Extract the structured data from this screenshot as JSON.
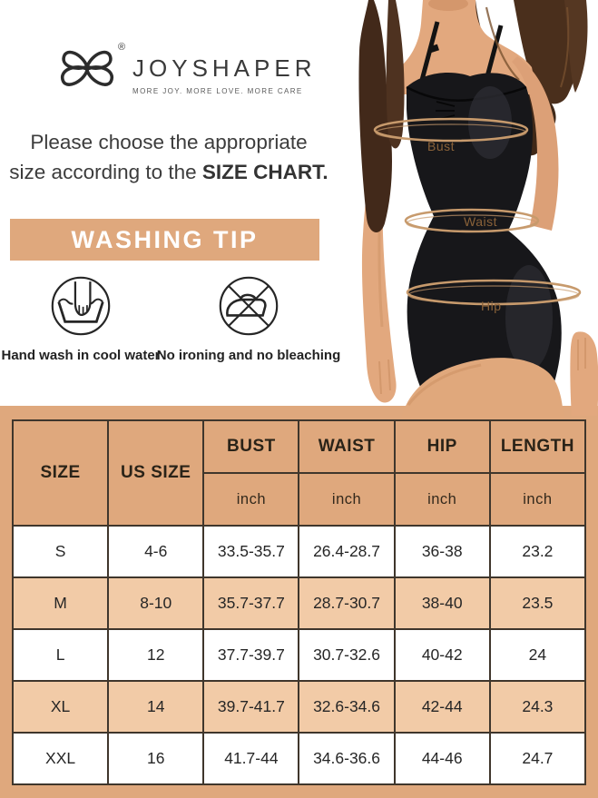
{
  "brand": {
    "name": "JOYSHAPER",
    "tagline": "MORE JOY. MORE LOVE. MORE CARE",
    "registered": "®",
    "logo_icon": "butterfly-bow-icon"
  },
  "intro": {
    "line1": "Please choose the appropriate",
    "line2_prefix": "size according to the ",
    "line2_bold": "SIZE CHART."
  },
  "washing_tip": {
    "title": "WASHING TIP",
    "items": [
      {
        "icon": "hand-wash-icon",
        "label": "Hand wash in cool water"
      },
      {
        "icon": "no-iron-icon",
        "label": "No ironing and no bleaching"
      }
    ]
  },
  "figure": {
    "labels": {
      "bust": "Bust",
      "waist": "Waist",
      "hip": "Hip"
    }
  },
  "size_chart": {
    "columns": [
      "SIZE",
      "US SIZE",
      "BUST",
      "WAIST",
      "HIP",
      "LENGTH"
    ],
    "unit": "inch",
    "rows": [
      [
        "S",
        "4-6",
        "33.5-35.7",
        "26.4-28.7",
        "36-38",
        "23.2"
      ],
      [
        "M",
        "8-10",
        "35.7-37.7",
        "28.7-30.7",
        "38-40",
        "23.5"
      ],
      [
        "L",
        "12",
        "37.7-39.7",
        "30.7-32.6",
        "40-42",
        "24"
      ],
      [
        "XL",
        "14",
        "39.7-41.7",
        "32.6-34.6",
        "42-44",
        "24.3"
      ],
      [
        "XXL",
        "16",
        "41.7-44",
        "34.6-36.6",
        "44-46",
        "24.7"
      ]
    ]
  },
  "colors": {
    "tan": "#dfa87d",
    "row_alt": "#f2cba7",
    "ring": "#c79a6c",
    "measure_label": "#8a6239",
    "banner_text": "#ffffff"
  }
}
